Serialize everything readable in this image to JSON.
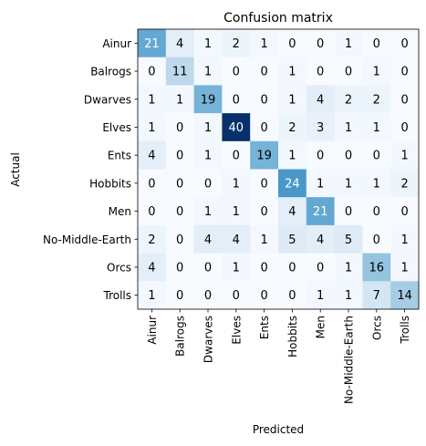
{
  "chart_data": {
    "type": "heatmap",
    "title": "Confusion matrix",
    "xlabel": "Predicted",
    "ylabel": "Actual",
    "labels": [
      "Ainur",
      "Balrogs",
      "Dwarves",
      "Elves",
      "Ents",
      "Hobbits",
      "Men",
      "No-Middle-Earth",
      "Orcs",
      "Trolls"
    ],
    "matrix": [
      [
        21,
        4,
        1,
        2,
        1,
        0,
        0,
        1,
        0,
        0
      ],
      [
        0,
        11,
        1,
        0,
        0,
        1,
        0,
        0,
        1,
        0
      ],
      [
        1,
        1,
        19,
        0,
        0,
        1,
        4,
        2,
        2,
        0
      ],
      [
        1,
        0,
        1,
        40,
        0,
        2,
        3,
        1,
        1,
        0
      ],
      [
        4,
        0,
        1,
        0,
        19,
        1,
        0,
        0,
        0,
        1
      ],
      [
        0,
        0,
        0,
        1,
        0,
        24,
        1,
        1,
        1,
        2
      ],
      [
        0,
        0,
        1,
        1,
        0,
        4,
        21,
        0,
        0,
        0
      ],
      [
        2,
        0,
        4,
        4,
        1,
        5,
        4,
        5,
        0,
        1
      ],
      [
        4,
        0,
        0,
        1,
        0,
        0,
        0,
        1,
        16,
        1
      ],
      [
        1,
        0,
        0,
        0,
        0,
        0,
        1,
        1,
        7,
        14
      ]
    ],
    "colormap": "Blues",
    "vmin": 0,
    "vmax": 40,
    "grid": false,
    "colors": {
      "low": "#f7fbff",
      "high": "#08306b",
      "text_dark": "#000000",
      "text_light": "#ffffff"
    }
  }
}
